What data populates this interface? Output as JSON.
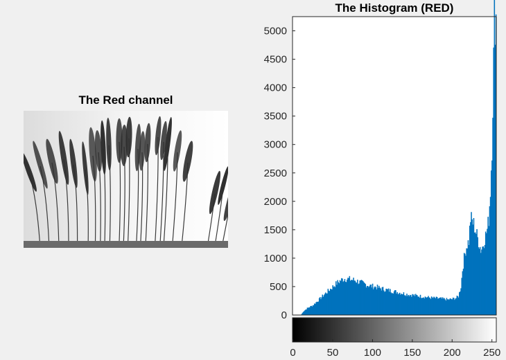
{
  "figure": {
    "image_panel": {
      "title": "The Red channel",
      "image_description": "grayscale photo of pampas grass plumes against a pale sky"
    }
  },
  "chart_data": {
    "type": "bar",
    "title": "The Histogram (RED)",
    "xlabel": "",
    "ylabel": "",
    "xlim": [
      0,
      255
    ],
    "ylim": [
      0,
      5250
    ],
    "x_ticks": [
      0,
      50,
      100,
      150,
      200,
      250
    ],
    "y_ticks": [
      0,
      500,
      1000,
      1500,
      2000,
      2500,
      3000,
      3500,
      4000,
      4500,
      5000
    ],
    "bar_color": "#0072bd",
    "colorbar": "grayscale 0 to 255 beneath x-axis",
    "profile_points": [
      [
        0,
        0
      ],
      [
        10,
        0
      ],
      [
        13,
        60
      ],
      [
        18,
        120
      ],
      [
        25,
        170
      ],
      [
        32,
        260
      ],
      [
        40,
        370
      ],
      [
        48,
        470
      ],
      [
        55,
        560
      ],
      [
        60,
        610
      ],
      [
        65,
        640
      ],
      [
        70,
        630
      ],
      [
        78,
        610
      ],
      [
        85,
        570
      ],
      [
        95,
        520
      ],
      [
        105,
        490
      ],
      [
        115,
        450
      ],
      [
        125,
        420
      ],
      [
        135,
        390
      ],
      [
        145,
        360
      ],
      [
        155,
        340
      ],
      [
        165,
        320
      ],
      [
        175,
        300
      ],
      [
        185,
        290
      ],
      [
        195,
        270
      ],
      [
        200,
        280
      ],
      [
        205,
        300
      ],
      [
        208,
        330
      ],
      [
        211,
        500
      ],
      [
        213,
        800
      ],
      [
        215,
        1000
      ],
      [
        217,
        1150
      ],
      [
        219,
        1250
      ],
      [
        221,
        1300
      ],
      [
        222,
        1500
      ],
      [
        223,
        1700
      ],
      [
        225,
        1650
      ],
      [
        227,
        1600
      ],
      [
        229,
        1500
      ],
      [
        230,
        1450
      ],
      [
        232,
        1350
      ],
      [
        234,
        1250
      ],
      [
        236,
        1150
      ],
      [
        238,
        1200
      ],
      [
        240,
        1300
      ],
      [
        242,
        1400
      ],
      [
        244,
        1500
      ],
      [
        246,
        1700
      ],
      [
        248,
        2200
      ],
      [
        250,
        3000
      ],
      [
        252,
        4500
      ],
      [
        253,
        5250
      ],
      [
        255,
        5250
      ]
    ]
  }
}
